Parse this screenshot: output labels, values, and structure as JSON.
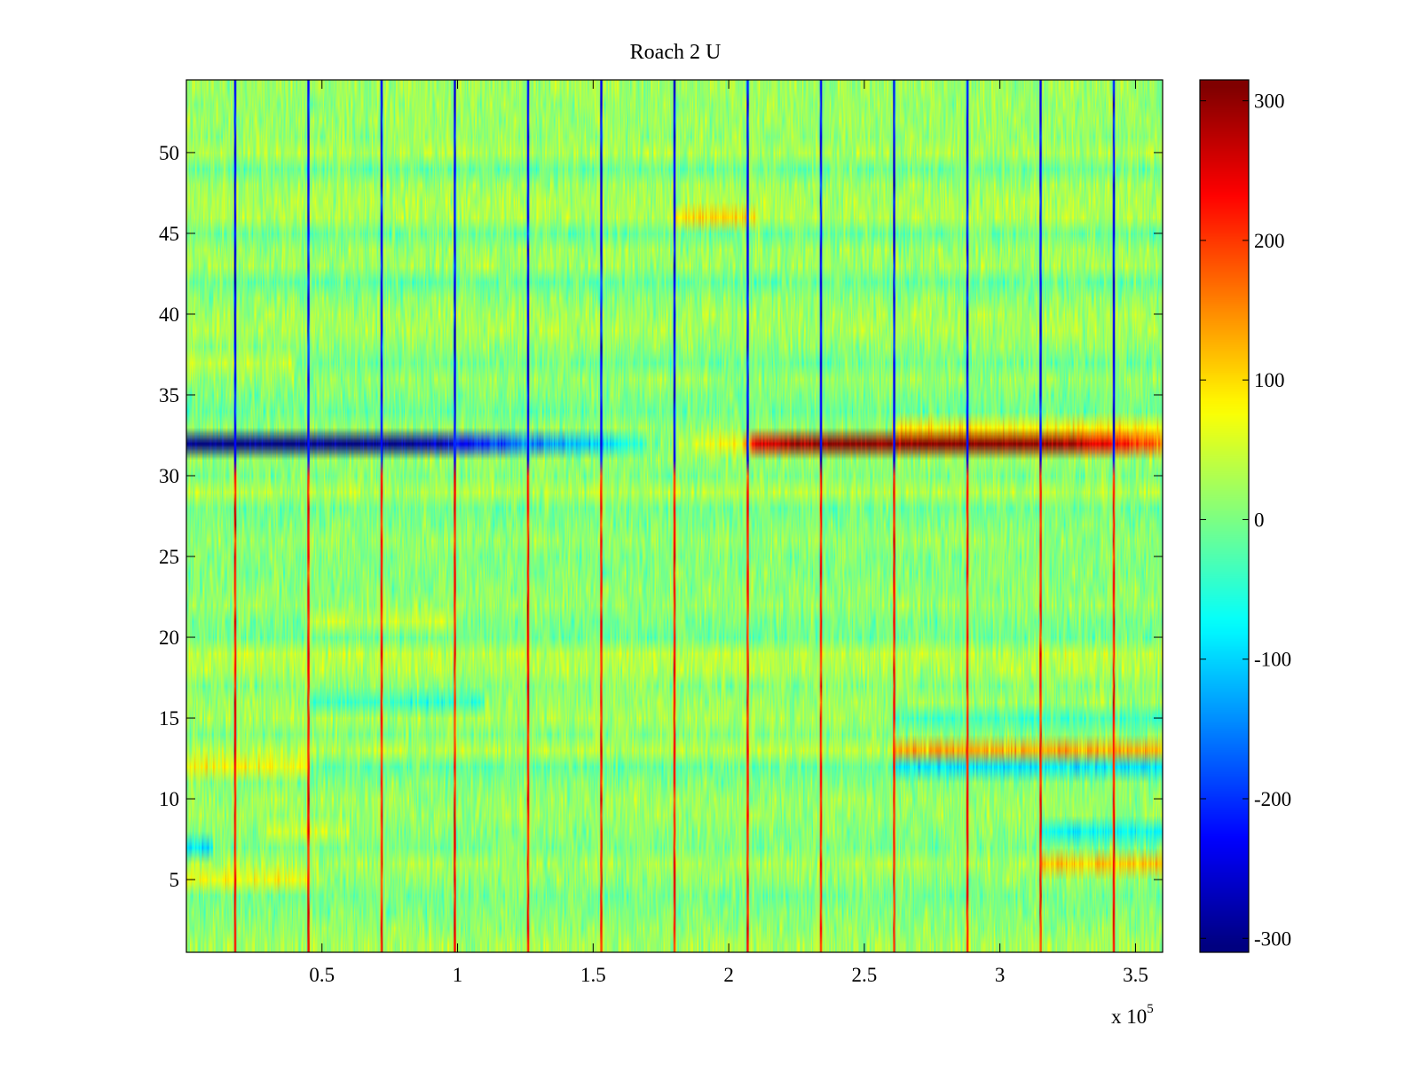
{
  "chart_data": {
    "type": "heatmap",
    "title": "Roach 2 U",
    "xlabel": "",
    "ylabel": "",
    "x_multiplier_label": {
      "base": "x 10",
      "exponent": "5"
    },
    "xlim": [
      0,
      3.6
    ],
    "ylim": [
      0.5,
      54.5
    ],
    "x_ticks": [
      0.5,
      1,
      1.5,
      2,
      2.5,
      3,
      3.5
    ],
    "x_tick_labels": [
      "0.5",
      "1",
      "1.5",
      "2",
      "2.5",
      "3",
      "3.5"
    ],
    "y_ticks": [
      5,
      10,
      15,
      20,
      25,
      30,
      35,
      40,
      45,
      50
    ],
    "y_tick_labels": [
      "5",
      "10",
      "15",
      "20",
      "25",
      "30",
      "35",
      "40",
      "45",
      "50"
    ],
    "rows": 54,
    "columnscale": "jet",
    "clim": [
      -310,
      315
    ],
    "colorbar": {
      "ticks": [
        -300,
        -200,
        -100,
        0,
        100,
        200,
        300
      ],
      "tick_labels": [
        "-300",
        "-200",
        "-100",
        "0",
        "100",
        "200",
        "300"
      ]
    },
    "baseline_mean": 12,
    "baseline_noise": 35,
    "row_offsets": [
      {
        "row": 5,
        "x": [
          0,
          0.45
        ],
        "value": 60
      },
      {
        "row": 6,
        "x": [
          3.15,
          3.6
        ],
        "value": 85
      },
      {
        "row": 7,
        "x": [
          0,
          0.1
        ],
        "value": -90
      },
      {
        "row": 8,
        "x": [
          3.15,
          3.6
        ],
        "value": -80
      },
      {
        "row": 8,
        "x": [
          0.3,
          0.6
        ],
        "value": 45
      },
      {
        "row": 12,
        "x": [
          0,
          0.45
        ],
        "value": 90
      },
      {
        "row": 13,
        "x": [
          2.6,
          3.6
        ],
        "value": 95
      },
      {
        "row": 12,
        "x": [
          2.6,
          3.6
        ],
        "value": -70
      },
      {
        "row": 15,
        "x": [
          2.6,
          3.6
        ],
        "value": -60
      },
      {
        "row": 16,
        "x": [
          0.45,
          1.1
        ],
        "value": -60
      },
      {
        "row": 21,
        "x": [
          0.45,
          1.0
        ],
        "value": 45
      },
      {
        "row": 33,
        "x": [
          2.6,
          3.6
        ],
        "value": 70
      },
      {
        "row": 46,
        "x": [
          1.8,
          2.1
        ],
        "value": 70
      },
      {
        "row": 37,
        "x": [
          0,
          0.4
        ],
        "value": 45
      }
    ],
    "highlight_row": {
      "row": 32,
      "x": [
        0,
        0.45,
        0.8,
        1.0,
        1.3,
        1.55,
        1.8,
        2.05,
        2.1,
        2.3,
        2.6,
        3.18,
        3.6
      ],
      "values": [
        -310,
        -310,
        -300,
        -240,
        -140,
        -100,
        30,
        90,
        250,
        310,
        315,
        315,
        170
      ]
    },
    "vertical_lines": {
      "x": [
        0.18,
        0.45,
        0.72,
        0.99,
        1.26,
        1.53,
        1.8,
        2.07,
        2.34,
        2.61,
        2.88,
        3.15,
        3.42
      ],
      "upper_value": -230,
      "lower_value": 220
    }
  }
}
